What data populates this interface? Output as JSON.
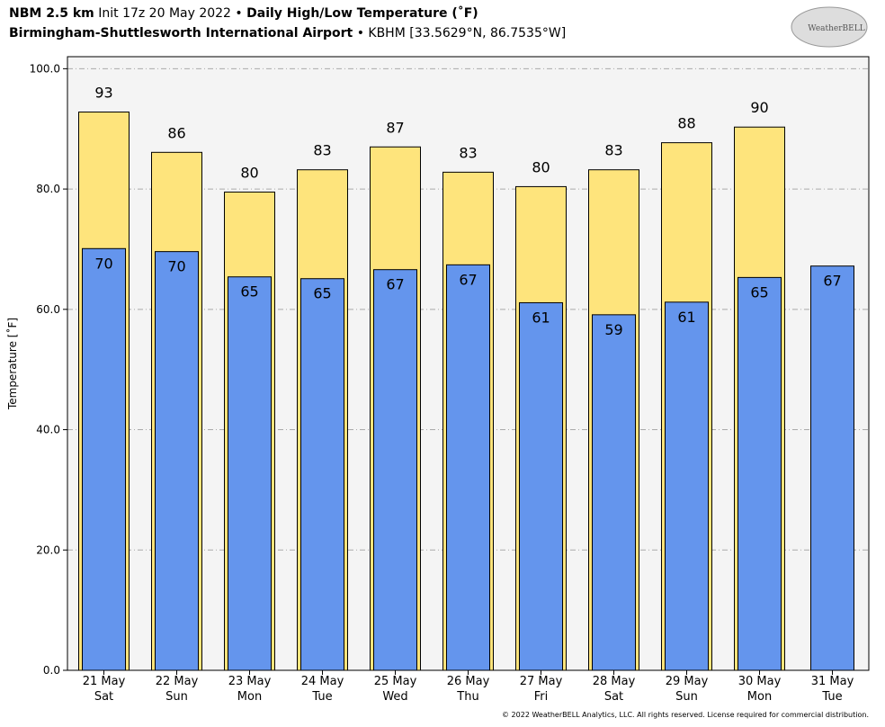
{
  "chart_data": {
    "type": "bar",
    "title": [
      "NBM 2.5 km",
      "Init 17z 20 May 2022 •",
      "Daily High/Low Temperature (˚F)"
    ],
    "subtitle": [
      "Birmingham-Shuttlesworth International Airport",
      "• KBHM [33.5629°N, 86.7535°W]"
    ],
    "y_label": "Temperature [˚F]",
    "footer": "© 2022 WeatherBELL Analytics, LLC. All rights reserved. License required for commercial distribution.",
    "logo_text": "WeatherBELL",
    "categories": [
      [
        "21 May",
        "Sat"
      ],
      [
        "22 May",
        "Sun"
      ],
      [
        "23 May",
        "Mon"
      ],
      [
        "24 May",
        "Tue"
      ],
      [
        "25 May",
        "Wed"
      ],
      [
        "26 May",
        "Thu"
      ],
      [
        "27 May",
        "Fri"
      ],
      [
        "28 May",
        "Sat"
      ],
      [
        "29 May",
        "Sun"
      ],
      [
        "30 May",
        "Mon"
      ],
      [
        "31 May",
        "Tue"
      ]
    ],
    "series": [
      {
        "color": "#fee47c",
        "values": [
          92.8,
          86.1,
          79.5,
          83.2,
          87.0,
          82.8,
          80.4,
          83.2,
          87.7,
          90.3,
          null
        ],
        "value_labels": [
          "93",
          "86",
          "80",
          "83",
          "87",
          "83",
          "80",
          "83",
          "88",
          "90",
          null
        ]
      },
      {
        "color": "#6495ed",
        "values": [
          70.1,
          69.6,
          65.4,
          65.1,
          66.6,
          67.4,
          61.1,
          59.1,
          61.2,
          65.3,
          67.2
        ],
        "value_labels": [
          "70",
          "70",
          "65",
          "65",
          "67",
          "67",
          "61",
          "59",
          "61",
          "65",
          "67"
        ]
      }
    ],
    "ylim": [
      0,
      102
    ],
    "yticks": [
      {
        "value": 0,
        "label": "0.0"
      },
      {
        "value": 20,
        "label": "20.0"
      },
      {
        "value": 40,
        "label": "40.0"
      },
      {
        "value": 60,
        "label": "60.0"
      },
      {
        "value": 80,
        "label": "80.0"
      },
      {
        "value": 100,
        "label": "100.0"
      }
    ],
    "grid": true
  }
}
